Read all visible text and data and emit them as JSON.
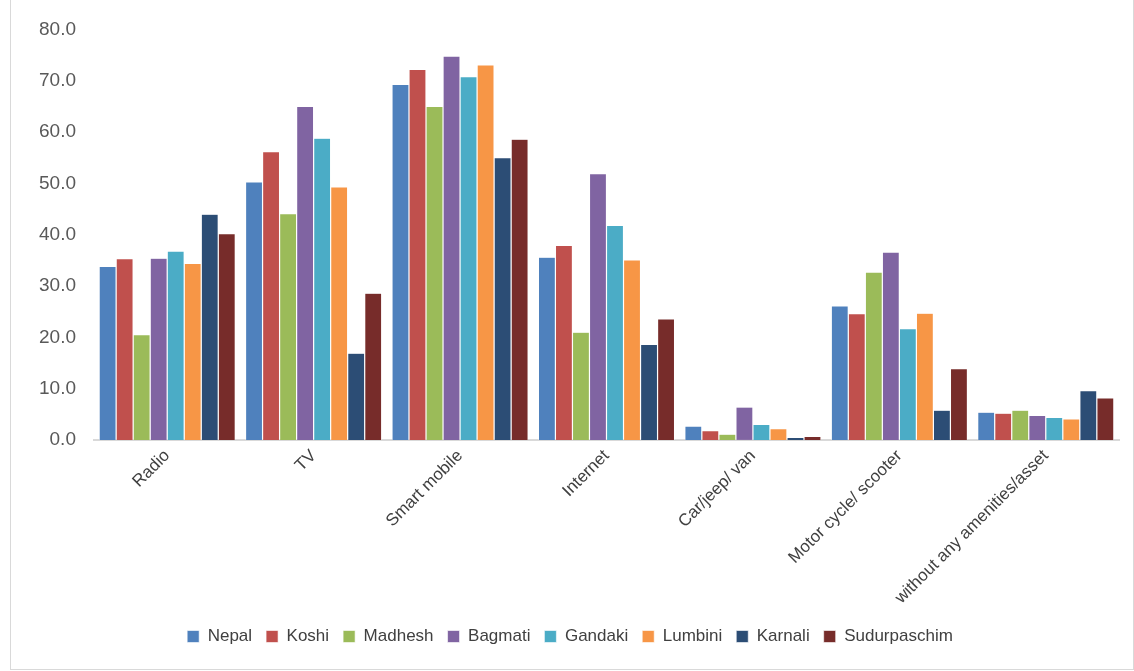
{
  "chart_data": {
    "type": "bar",
    "categories": [
      "Radio",
      "TV",
      "Smart mobile",
      "Internet",
      "Car/jeep/ van",
      "Motor cycle/ scooter",
      "without any amenities/asset"
    ],
    "series": [
      {
        "name": "Nepal",
        "color": "#4f81bd",
        "values": [
          33.8,
          50.3,
          69.3,
          35.6,
          2.7,
          26.1,
          5.4
        ]
      },
      {
        "name": "Koshi",
        "color": "#c0504d",
        "values": [
          35.3,
          56.2,
          72.2,
          37.9,
          1.8,
          24.6,
          5.2
        ]
      },
      {
        "name": "Madhesh",
        "color": "#9bbb59",
        "values": [
          20.5,
          44.1,
          65.0,
          21.0,
          1.1,
          32.7,
          5.8
        ]
      },
      {
        "name": "Bagmati",
        "color": "#8064a2",
        "values": [
          35.4,
          65.0,
          74.8,
          51.9,
          6.4,
          36.6,
          4.8
        ]
      },
      {
        "name": "Gandaki",
        "color": "#4bacc6",
        "values": [
          36.8,
          58.8,
          70.8,
          41.8,
          3.0,
          21.7,
          4.4
        ]
      },
      {
        "name": "Lumbini",
        "color": "#f79646",
        "values": [
          34.4,
          49.3,
          73.1,
          35.1,
          2.2,
          24.7,
          4.1
        ]
      },
      {
        "name": "Karnali",
        "color": "#2c4d75",
        "values": [
          44.0,
          16.9,
          55.0,
          18.6,
          0.5,
          5.8,
          9.6
        ]
      },
      {
        "name": "Sudurpaschim",
        "color": "#772c2a",
        "values": [
          40.2,
          28.6,
          58.6,
          23.6,
          0.7,
          13.9,
          8.2
        ]
      }
    ],
    "ylim": [
      0,
      80
    ],
    "yticks": [
      {
        "value": 0,
        "label": "0.0"
      },
      {
        "value": 10,
        "label": "10.0"
      },
      {
        "value": 20,
        "label": "20.0"
      },
      {
        "value": 30,
        "label": "30.0"
      },
      {
        "value": 40,
        "label": "40.0"
      },
      {
        "value": 50,
        "label": "50.0"
      },
      {
        "value": 60,
        "label": "60.0"
      },
      {
        "value": 70,
        "label": "70.0"
      },
      {
        "value": 80,
        "label": "80.0"
      }
    ],
    "grid": false,
    "legend": "bottom"
  }
}
